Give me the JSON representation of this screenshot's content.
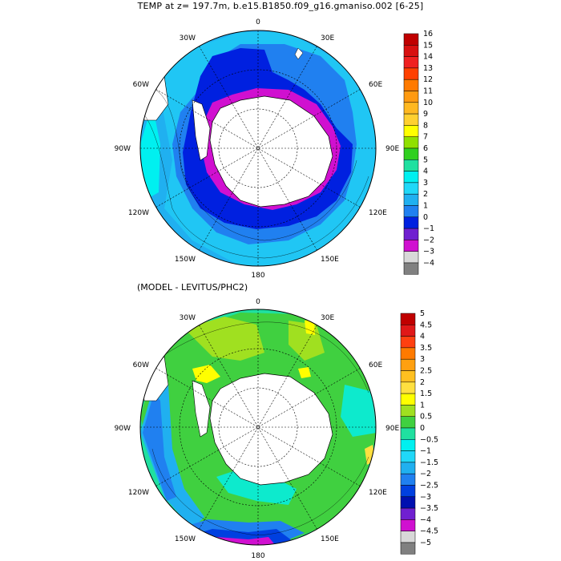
{
  "title": "TEMP at z= 197.7m, b.e15.B1850.f09_g16.gmaniso.002 [6-25]",
  "subtitle": "(MODEL - LEVITUS/PHC2)",
  "panels": [
    {
      "name": "model-temperature",
      "lon_labels": [
        "0",
        "30E",
        "60E",
        "90E",
        "120E",
        "150E",
        "180",
        "150W",
        "120W",
        "90W",
        "60W",
        "30W"
      ],
      "colorbar": {
        "labels": [
          "16",
          "15",
          "14",
          "13",
          "12",
          "11",
          "10",
          "9",
          "8",
          "7",
          "6",
          "5",
          "4",
          "3",
          "2",
          "1",
          "0",
          "−1",
          "−2",
          "−3",
          "−4"
        ],
        "colors": [
          "#c00000",
          "#d81010",
          "#f02020",
          "#ff4000",
          "#ff7a00",
          "#ff9a10",
          "#ffb820",
          "#ffd030",
          "#ffff00",
          "#90e000",
          "#30d020",
          "#20e0a0",
          "#00f0f0",
          "#20d8f8",
          "#20b0f0",
          "#2080f0",
          "#0020e0",
          "#7020d0",
          "#d010d0",
          "#d8d8d8",
          "#808080"
        ]
      }
    },
    {
      "name": "model-minus-levitus",
      "lon_labels": [
        "0",
        "30E",
        "60E",
        "90E",
        "120E",
        "150E",
        "180",
        "150W",
        "120W",
        "90W",
        "60W",
        "30W"
      ],
      "colorbar": {
        "labels": [
          "5",
          "4.5",
          "4",
          "3.5",
          "3",
          "2.5",
          "2",
          "1.5",
          "1",
          "0.5",
          "0",
          "−0.5",
          "−1",
          "−1.5",
          "−2",
          "−2.5",
          "−3",
          "−3.5",
          "−4",
          "−4.5",
          "−5"
        ],
        "colors": [
          "#c00000",
          "#e01818",
          "#ff4010",
          "#ff7a00",
          "#ffa010",
          "#ffc020",
          "#ffe040",
          "#ffff00",
          "#a0e020",
          "#40d040",
          "#20e0a0",
          "#00f0f0",
          "#20d8f8",
          "#20b0f0",
          "#2080f0",
          "#0040e0",
          "#0010b0",
          "#7020d0",
          "#d010d0",
          "#d8d8d8",
          "#808080"
        ]
      }
    }
  ]
}
